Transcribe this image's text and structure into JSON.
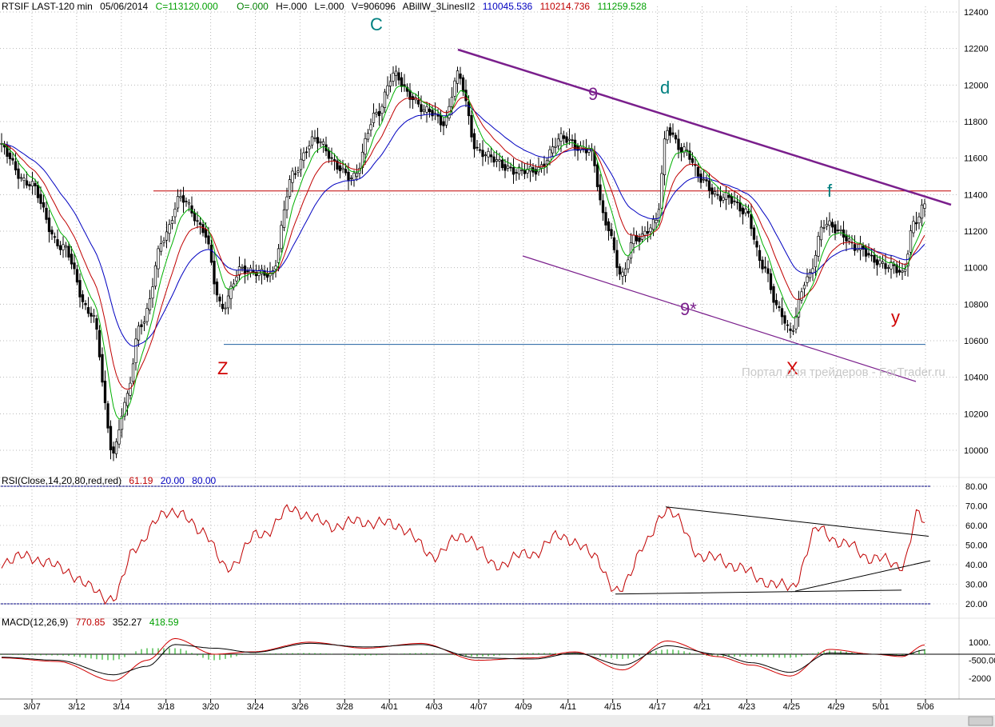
{
  "header": {
    "symbol": "RTSIF LAST-120 min",
    "date": "05/06/2014",
    "close": "C=113120.000",
    "open": "O=.000",
    "high": "H=.000",
    "low": "L=.000",
    "volume": "V=906096",
    "indicator_name": "ABillW_3LinesII2",
    "line1_value": "110045.536",
    "line2_value": "110214.736",
    "line3_value": "111259.528"
  },
  "colors": {
    "candle": "#000000",
    "line_blue": "#0000c0",
    "line_red": "#c00000",
    "line_green": "#00b000",
    "channel_purple": "#7a1f8c",
    "resistance_red": "#c00000",
    "support_blue": "#2060a0",
    "wave_teal": "#008080",
    "wave_red": "#d00000",
    "wave_purple": "#7a1f8c",
    "rsi_line": "#c00000",
    "macd_hist": "#00a000",
    "macd_line": "#000000",
    "macd_signal": "#d00000"
  },
  "y_axis": {
    "labels": [
      "12400",
      "12200",
      "12000",
      "11800",
      "11600",
      "11400",
      "11200",
      "11000",
      "10800",
      "10600",
      "10400",
      "10200",
      "10000"
    ]
  },
  "x_axis": {
    "labels": [
      "3/07",
      "3/12",
      "3/14",
      "3/18",
      "3/20",
      "3/24",
      "3/26",
      "3/28",
      "4/01",
      "4/03",
      "4/07",
      "4/09",
      "4/11",
      "4/15",
      "4/17",
      "4/21",
      "4/23",
      "4/25",
      "4/29",
      "5/01",
      "5/06"
    ]
  },
  "wave_labels": {
    "C": "C",
    "d": "d",
    "f": "f",
    "z": "Z",
    "x": "X",
    "y": "y",
    "nine": "9",
    "nine_star": "9*"
  },
  "watermark": "Портал для трейдеров - ForTrader.ru",
  "rsi": {
    "title": "RSI(Close,14,20,80,red,red)",
    "value": "61.19",
    "lower": "20.00",
    "upper": "80.00",
    "labels": [
      "80.00",
      "70.00",
      "60.00",
      "50.00",
      "40.00",
      "30.00",
      "20.00"
    ]
  },
  "macd": {
    "title": "MACD(12,26,9)",
    "macd_value": "770.85",
    "signal_value": "352.27",
    "hist_value": "418.59",
    "labels": [
      "1000.",
      "-500.00",
      "-2000"
    ]
  },
  "chart_data": {
    "type": "candlestick",
    "title": "RTSIF LAST-120 min",
    "y_range": [
      9900,
      12450
    ],
    "date_ticks": [
      "3/07",
      "3/12",
      "3/14",
      "3/18",
      "3/20",
      "3/24",
      "3/26",
      "3/28",
      "4/01",
      "4/03",
      "4/07",
      "4/09",
      "4/11",
      "4/15",
      "4/17",
      "4/21",
      "4/23",
      "4/25",
      "4/29",
      "5/01",
      "5/06"
    ],
    "key_levels": {
      "resistance_horizontal": 11420,
      "support_horizontal": 10580
    },
    "anchor_points": [
      {
        "bar": 0,
        "price": 11650
      },
      {
        "bar": 10,
        "price": 11450
      },
      {
        "bar": 22,
        "price": 11100
      },
      {
        "bar": 32,
        "price": 10750
      },
      {
        "bar": 40,
        "price": 10000
      },
      {
        "bar": 44,
        "price": 10250
      },
      {
        "bar": 50,
        "price": 10700
      },
      {
        "bar": 58,
        "price": 11150
      },
      {
        "bar": 64,
        "price": 11400
      },
      {
        "bar": 72,
        "price": 11200
      },
      {
        "bar": 79,
        "price": 10780
      },
      {
        "bar": 86,
        "price": 11000
      },
      {
        "bar": 96,
        "price": 10950
      },
      {
        "bar": 104,
        "price": 11500
      },
      {
        "bar": 112,
        "price": 11720
      },
      {
        "bar": 120,
        "price": 11550
      },
      {
        "bar": 126,
        "price": 11500
      },
      {
        "bar": 134,
        "price": 11850
      },
      {
        "bar": 140,
        "price": 12050
      },
      {
        "bar": 146,
        "price": 11950
      },
      {
        "bar": 152,
        "price": 11850
      },
      {
        "bar": 158,
        "price": 11800
      },
      {
        "bar": 163,
        "price": 12050
      },
      {
        "bar": 170,
        "price": 11650
      },
      {
        "bar": 180,
        "price": 11550
      },
      {
        "bar": 190,
        "price": 11520
      },
      {
        "bar": 200,
        "price": 11700
      },
      {
        "bar": 210,
        "price": 11650
      },
      {
        "bar": 216,
        "price": 11250
      },
      {
        "bar": 222,
        "price": 10950
      },
      {
        "bar": 226,
        "price": 11150
      },
      {
        "bar": 234,
        "price": 11250
      },
      {
        "bar": 238,
        "price": 11750
      },
      {
        "bar": 244,
        "price": 11650
      },
      {
        "bar": 250,
        "price": 11480
      },
      {
        "bar": 258,
        "price": 11380
      },
      {
        "bar": 266,
        "price": 11320
      },
      {
        "bar": 272,
        "price": 11000
      },
      {
        "bar": 278,
        "price": 10780
      },
      {
        "bar": 282,
        "price": 10640
      },
      {
        "bar": 288,
        "price": 10950
      },
      {
        "bar": 294,
        "price": 11230
      },
      {
        "bar": 300,
        "price": 11200
      },
      {
        "bar": 306,
        "price": 11100
      },
      {
        "bar": 312,
        "price": 11050
      },
      {
        "bar": 318,
        "price": 11000
      },
      {
        "bar": 322,
        "price": 10960
      },
      {
        "bar": 326,
        "price": 11250
      },
      {
        "bar": 330,
        "price": 11330
      }
    ],
    "rsi_anchor_points": [
      {
        "bar": 0,
        "value": 42
      },
      {
        "bar": 10,
        "value": 44
      },
      {
        "bar": 22,
        "value": 38
      },
      {
        "bar": 32,
        "value": 28
      },
      {
        "bar": 40,
        "value": 22
      },
      {
        "bar": 48,
        "value": 50
      },
      {
        "bar": 60,
        "value": 68
      },
      {
        "bar": 72,
        "value": 58
      },
      {
        "bar": 80,
        "value": 38
      },
      {
        "bar": 92,
        "value": 55
      },
      {
        "bar": 104,
        "value": 68
      },
      {
        "bar": 118,
        "value": 60
      },
      {
        "bar": 130,
        "value": 62
      },
      {
        "bar": 142,
        "value": 60
      },
      {
        "bar": 154,
        "value": 45
      },
      {
        "bar": 166,
        "value": 55
      },
      {
        "bar": 176,
        "value": 40
      },
      {
        "bar": 190,
        "value": 46
      },
      {
        "bar": 200,
        "value": 55
      },
      {
        "bar": 212,
        "value": 45
      },
      {
        "bar": 220,
        "value": 25
      },
      {
        "bar": 230,
        "value": 50
      },
      {
        "bar": 238,
        "value": 69
      },
      {
        "bar": 250,
        "value": 45
      },
      {
        "bar": 262,
        "value": 40
      },
      {
        "bar": 272,
        "value": 32
      },
      {
        "bar": 282,
        "value": 28
      },
      {
        "bar": 292,
        "value": 58
      },
      {
        "bar": 302,
        "value": 50
      },
      {
        "bar": 312,
        "value": 43
      },
      {
        "bar": 322,
        "value": 40
      },
      {
        "bar": 328,
        "value": 66
      },
      {
        "bar": 330,
        "value": 61
      }
    ],
    "macd_anchor_points": [
      {
        "bar": 0,
        "macd": -300,
        "signal": -250
      },
      {
        "bar": 20,
        "macd": -600,
        "signal": -500
      },
      {
        "bar": 40,
        "macd": -2200,
        "signal": -1700
      },
      {
        "bar": 52,
        "macd": -500,
        "signal": -1000
      },
      {
        "bar": 62,
        "macd": 1300,
        "signal": 800
      },
      {
        "bar": 76,
        "macd": 0,
        "signal": 500
      },
      {
        "bar": 90,
        "macd": 200,
        "signal": 150
      },
      {
        "bar": 110,
        "macd": 1000,
        "signal": 900
      },
      {
        "bar": 130,
        "macd": 500,
        "signal": 600
      },
      {
        "bar": 150,
        "macd": 900,
        "signal": 800
      },
      {
        "bar": 170,
        "macd": -500,
        "signal": -300
      },
      {
        "bar": 190,
        "macd": -300,
        "signal": -400
      },
      {
        "bar": 205,
        "macd": 200,
        "signal": 100
      },
      {
        "bar": 222,
        "macd": -1300,
        "signal": -900
      },
      {
        "bar": 238,
        "macd": 1100,
        "signal": 700
      },
      {
        "bar": 256,
        "macd": -200,
        "signal": 0
      },
      {
        "bar": 268,
        "macd": -900,
        "signal": -700
      },
      {
        "bar": 282,
        "macd": -1800,
        "signal": -1500
      },
      {
        "bar": 296,
        "macd": 400,
        "signal": 100
      },
      {
        "bar": 312,
        "macd": 0,
        "signal": 0
      },
      {
        "bar": 322,
        "macd": -200,
        "signal": -100
      },
      {
        "bar": 330,
        "macd": 770,
        "signal": 352
      }
    ]
  }
}
